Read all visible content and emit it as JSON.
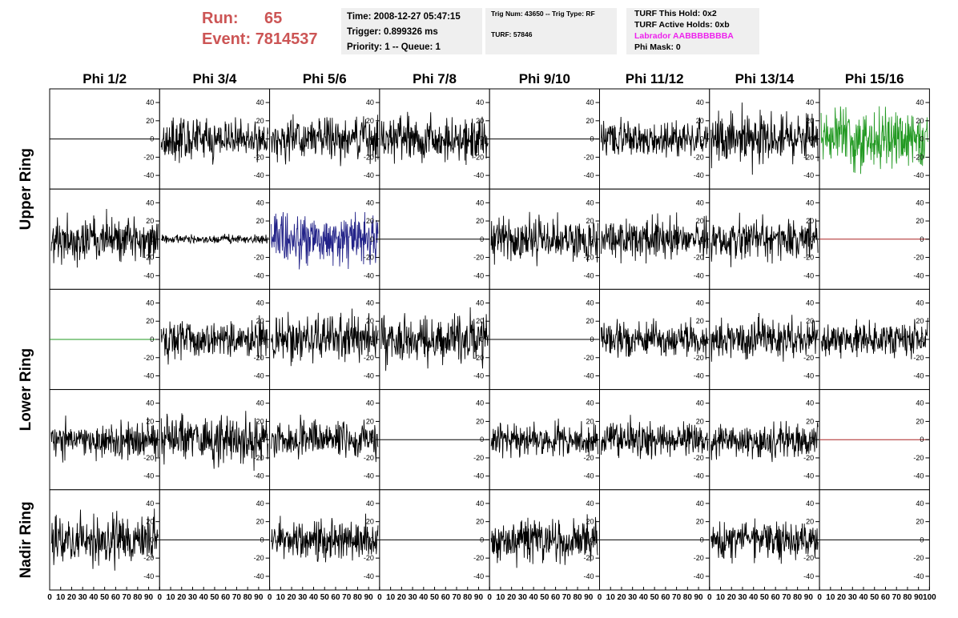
{
  "header": {
    "run_label": "Run:",
    "run_value": "65",
    "event_label": "Event:",
    "event_value": "7814537"
  },
  "info_time": {
    "time": "Time: 2008-12-27 05:47:15",
    "trigger": "Trigger: 0.899326 ms",
    "priority": "Priority: 1 -- Queue: 1"
  },
  "info_trig": {
    "trig": "Trig Num: 43650 -- Trig Type: RF",
    "turf": "TURF: 57846"
  },
  "info_turf": {
    "this_hold": "TURF This Hold: 0x2",
    "active_holds": "TURF Active Holds: 0xb",
    "labrador": "Labrador AABBBBBBBA",
    "phi_mask": "Phi Mask: 0",
    "labrador_color": "#ee22ee"
  },
  "chart_data": {
    "type": "line",
    "columns": [
      "Phi 1/2",
      "Phi 3/4",
      "Phi 5/6",
      "Phi 7/8",
      "Phi 9/10",
      "Phi 11/12",
      "Phi 13/14",
      "Phi 15/16"
    ],
    "rows": [
      "Upper Ring",
      "Lower Ring",
      "Nadir Ring"
    ],
    "y_ticks": [
      "40",
      "20",
      "0",
      "-20",
      "-40"
    ],
    "x_ticks": [
      "0",
      "10",
      "20",
      "30",
      "40",
      "50",
      "60",
      "70",
      "80",
      "90",
      "100"
    ],
    "ylim": [
      -55,
      55
    ],
    "xlim": [
      0,
      100
    ],
    "grid": false,
    "colors": {
      "default": "#000000",
      "green": "#229922",
      "blue": "#222288",
      "red": "#aa2222"
    },
    "panels": [
      {
        "row": 0,
        "col": 0,
        "flat": true,
        "color": "default",
        "amp": 0
      },
      {
        "row": 0,
        "col": 1,
        "flat": false,
        "color": "default",
        "amp": 14
      },
      {
        "row": 0,
        "col": 2,
        "flat": false,
        "color": "default",
        "amp": 15
      },
      {
        "row": 0,
        "col": 3,
        "flat": false,
        "color": "default",
        "amp": 15
      },
      {
        "row": 0,
        "col": 4,
        "flat": true,
        "color": "default",
        "amp": 0
      },
      {
        "row": 0,
        "col": 5,
        "flat": false,
        "color": "default",
        "amp": 12
      },
      {
        "row": 0,
        "col": 6,
        "flat": false,
        "color": "default",
        "amp": 18
      },
      {
        "row": 0,
        "col": 7,
        "flat": false,
        "color": "green",
        "amp": 20
      },
      {
        "row": 1,
        "col": 0,
        "flat": false,
        "color": "default",
        "amp": 16
      },
      {
        "row": 1,
        "col": 1,
        "flat": false,
        "color": "default",
        "amp": 3
      },
      {
        "row": 1,
        "col": 2,
        "flat": false,
        "color": "blue",
        "amp": 18
      },
      {
        "row": 1,
        "col": 3,
        "flat": true,
        "color": "default",
        "amp": 0
      },
      {
        "row": 1,
        "col": 4,
        "flat": false,
        "color": "default",
        "amp": 15
      },
      {
        "row": 1,
        "col": 5,
        "flat": false,
        "color": "default",
        "amp": 14
      },
      {
        "row": 1,
        "col": 6,
        "flat": false,
        "color": "default",
        "amp": 14
      },
      {
        "row": 1,
        "col": 7,
        "flat": true,
        "color": "red",
        "amp": 0
      },
      {
        "row": 2,
        "col": 0,
        "flat": true,
        "color": "green",
        "amp": 0
      },
      {
        "row": 2,
        "col": 1,
        "flat": false,
        "color": "default",
        "amp": 15
      },
      {
        "row": 2,
        "col": 2,
        "flat": false,
        "color": "default",
        "amp": 16
      },
      {
        "row": 2,
        "col": 3,
        "flat": false,
        "color": "default",
        "amp": 17
      },
      {
        "row": 2,
        "col": 4,
        "flat": true,
        "color": "default",
        "amp": 0
      },
      {
        "row": 2,
        "col": 5,
        "flat": false,
        "color": "default",
        "amp": 12
      },
      {
        "row": 2,
        "col": 6,
        "flat": false,
        "color": "default",
        "amp": 14
      },
      {
        "row": 2,
        "col": 7,
        "flat": false,
        "color": "default",
        "amp": 12
      },
      {
        "row": 3,
        "col": 0,
        "flat": false,
        "color": "default",
        "amp": 13
      },
      {
        "row": 3,
        "col": 1,
        "flat": false,
        "color": "default",
        "amp": 16
      },
      {
        "row": 3,
        "col": 2,
        "flat": false,
        "color": "default",
        "amp": 13
      },
      {
        "row": 3,
        "col": 3,
        "flat": true,
        "color": "default",
        "amp": 0
      },
      {
        "row": 3,
        "col": 4,
        "flat": false,
        "color": "default",
        "amp": 12
      },
      {
        "row": 3,
        "col": 5,
        "flat": false,
        "color": "default",
        "amp": 13
      },
      {
        "row": 3,
        "col": 6,
        "flat": false,
        "color": "default",
        "amp": 13
      },
      {
        "row": 3,
        "col": 7,
        "flat": true,
        "color": "red",
        "amp": 0
      },
      {
        "row": 4,
        "col": 0,
        "flat": false,
        "color": "default",
        "amp": 16
      },
      {
        "row": 4,
        "col": 1,
        "flat": true,
        "color": "default",
        "amp": 0
      },
      {
        "row": 4,
        "col": 2,
        "flat": false,
        "color": "default",
        "amp": 13
      },
      {
        "row": 4,
        "col": 3,
        "flat": true,
        "color": "default",
        "amp": 0
      },
      {
        "row": 4,
        "col": 4,
        "flat": false,
        "color": "default",
        "amp": 16
      },
      {
        "row": 4,
        "col": 5,
        "flat": true,
        "color": "default",
        "amp": 0
      },
      {
        "row": 4,
        "col": 6,
        "flat": false,
        "color": "default",
        "amp": 13
      },
      {
        "row": 4,
        "col": 7,
        "flat": true,
        "color": "default",
        "amp": 0
      }
    ]
  }
}
